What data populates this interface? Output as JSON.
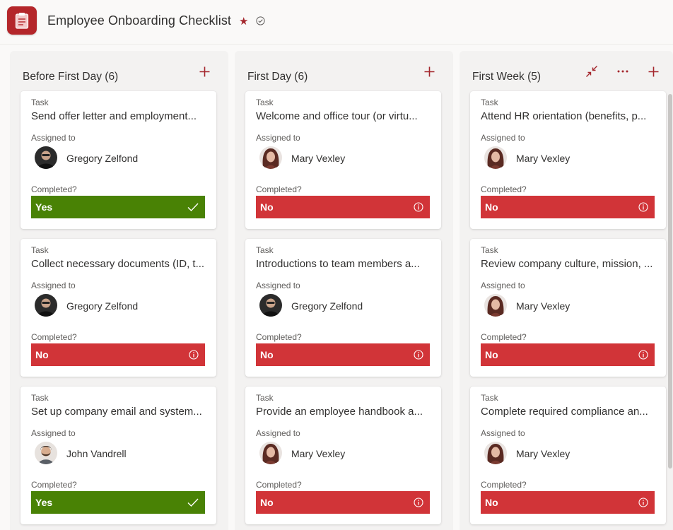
{
  "header": {
    "title": "Employee Onboarding Checklist",
    "favorite_icon": "star-icon",
    "status_icon": "check-circle-icon",
    "app_icon": "clipboard-icon",
    "brand_color": "#b4262a"
  },
  "labels": {
    "task": "Task",
    "assigned_to": "Assigned to",
    "completed": "Completed?"
  },
  "status_colors": {
    "yes": "#498205",
    "no": "#d13438"
  },
  "columns": [
    {
      "title": "Before First Day (6)",
      "cards": [
        {
          "task": "Task",
          "title": "Send offer letter and employment...",
          "assigned_label": "Assigned to",
          "assignee": "Gregory Zelfond",
          "completed_label": "Completed?",
          "status": "Yes"
        },
        {
          "task": "Task",
          "title": "Collect necessary documents (ID, t...",
          "assigned_label": "Assigned to",
          "assignee": "Gregory Zelfond",
          "completed_label": "Completed?",
          "status": "No"
        },
        {
          "task": "Task",
          "title": "Set up company email and system...",
          "assigned_label": "Assigned to",
          "assignee": "John Vandrell",
          "completed_label": "Completed?",
          "status": "Yes"
        }
      ]
    },
    {
      "title": "First Day (6)",
      "cards": [
        {
          "task": "Task",
          "title": "Welcome and office tour (or virtu...",
          "assigned_label": "Assigned to",
          "assignee": "Mary Vexley",
          "completed_label": "Completed?",
          "status": "No"
        },
        {
          "task": "Task",
          "title": "Introductions to team members a...",
          "assigned_label": "Assigned to",
          "assignee": "Gregory Zelfond",
          "completed_label": "Completed?",
          "status": "No"
        },
        {
          "task": "Task",
          "title": "Provide an employee handbook a...",
          "assigned_label": "Assigned to",
          "assignee": "Mary Vexley",
          "completed_label": "Completed?",
          "status": "No"
        }
      ]
    },
    {
      "title": "First Week (5)",
      "cards": [
        {
          "task": "Task",
          "title": "Attend HR orientation (benefits, p...",
          "assigned_label": "Assigned to",
          "assignee": "Mary Vexley",
          "completed_label": "Completed?",
          "status": "No"
        },
        {
          "task": "Task",
          "title": "Review company culture, mission, ...",
          "assigned_label": "Assigned to",
          "assignee": "Mary Vexley",
          "completed_label": "Completed?",
          "status": "No"
        },
        {
          "task": "Task",
          "title": "Complete required compliance an...",
          "assigned_label": "Assigned to",
          "assignee": "Mary Vexley",
          "completed_label": "Completed?",
          "status": "No"
        }
      ]
    }
  ]
}
